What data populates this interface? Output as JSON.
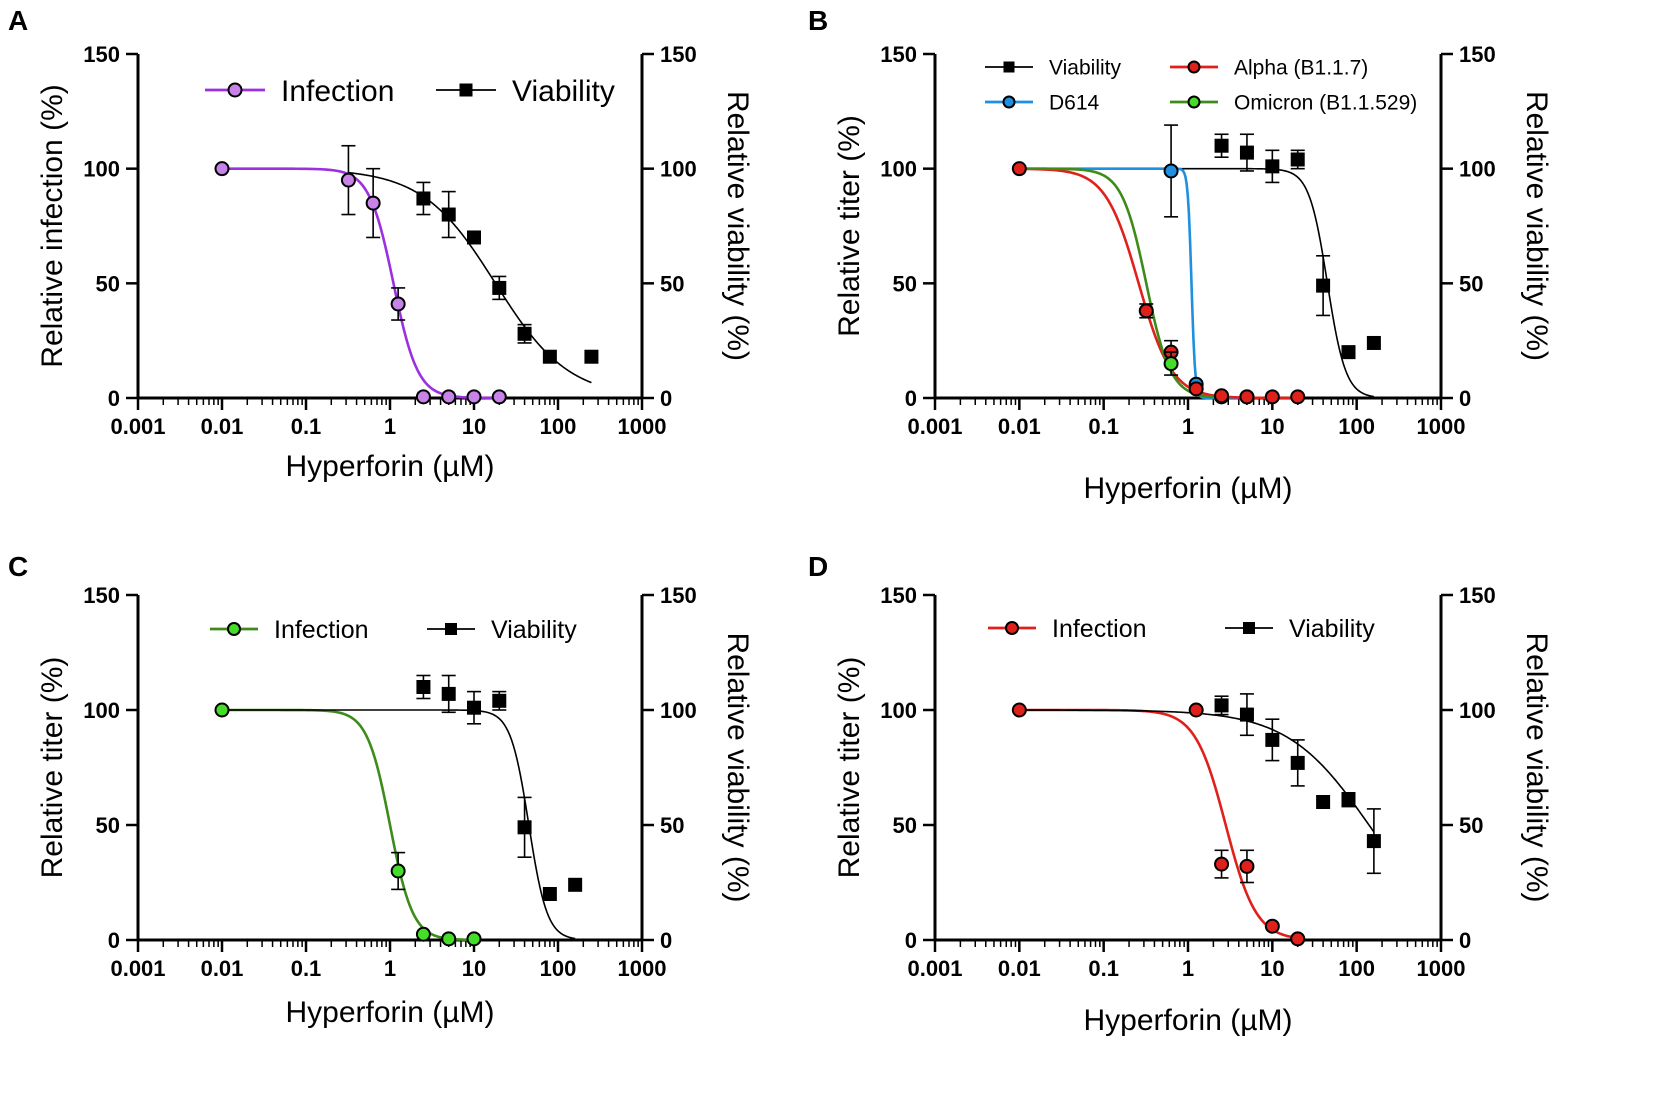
{
  "figure": {
    "colors": {
      "infection_purple": "#9b30e0",
      "infection_purple_fill": "#c783e8",
      "green_line": "#3d8c1a",
      "green_fill": "#45dc2a",
      "red": "#e0201a",
      "blue": "#1f8fe0",
      "black": "#000000"
    }
  },
  "chart_data": [
    {
      "panel": "A",
      "type": "scatter",
      "xlabel": "Hyperforin (µM)",
      "ylabel": "Relative infection (%)",
      "y2label": "Relative viability (%)",
      "xscale": "log",
      "xlim": [
        0.001,
        1000
      ],
      "ylim": [
        0,
        150
      ],
      "x_ticks": [
        "0.001",
        "0.01",
        "0.1",
        "1",
        "10",
        "100",
        "1000"
      ],
      "y_ticks": [
        "0",
        "50",
        "100",
        "150"
      ],
      "legend_size": "large",
      "series": [
        {
          "name": "Infection",
          "marker": "circle",
          "color": "#9b30e0",
          "fill": "#c783e8",
          "x": [
            0.01,
            0.32,
            0.63,
            1.25,
            2.5,
            5,
            10,
            20
          ],
          "y": [
            100,
            95,
            85,
            41,
            0.5,
            0.5,
            0.5,
            0.5
          ],
          "err": [
            0,
            15,
            15,
            7,
            0,
            0,
            0,
            0
          ],
          "fit": {
            "ic50": 1.1,
            "hill": 3.0,
            "xmin": 0.01,
            "xmax": 20
          }
        },
        {
          "name": "Viability",
          "marker": "square",
          "color": "#000000",
          "fill": "#000000",
          "x": [
            2.5,
            5,
            10,
            20,
            40,
            80,
            250
          ],
          "y": [
            87,
            80,
            70,
            48,
            28,
            18,
            18
          ],
          "err": [
            7,
            10,
            0,
            5,
            4,
            0,
            0
          ],
          "fit": {
            "ic50": 18,
            "hill": 1.0,
            "xmin": 0.32,
            "xmax": 250
          }
        }
      ]
    },
    {
      "panel": "B",
      "type": "scatter",
      "xlabel": "Hyperforin (µM)",
      "ylabel": "Relative titer (%)",
      "y2label": "Relative viability (%)",
      "xscale": "log",
      "xlim": [
        0.001,
        1000
      ],
      "ylim": [
        0,
        150
      ],
      "x_ticks": [
        "0.001",
        "0.01",
        "0.1",
        "1",
        "10",
        "100",
        "1000"
      ],
      "y_ticks": [
        "0",
        "50",
        "100",
        "150"
      ],
      "legend_size": "small",
      "series": [
        {
          "name": "Viability",
          "marker": "square",
          "color": "#000000",
          "fill": "#000000",
          "x": [
            2.5,
            5,
            10,
            20,
            40,
            80,
            160
          ],
          "y": [
            110,
            107,
            101,
            104,
            49,
            20,
            24
          ],
          "err": [
            5,
            8,
            7,
            4,
            13,
            0,
            0
          ],
          "fit": {
            "ic50": 45,
            "hill": 4.0,
            "xmin": 0.63,
            "xmax": 160
          }
        },
        {
          "name": "D614",
          "marker": "circle",
          "color": "#1f8fe0",
          "fill": "#1f8fe0",
          "x": [
            0.63,
            1.25,
            2.5,
            5
          ],
          "y": [
            99,
            6,
            0.5,
            0.5
          ],
          "err": [
            20,
            0,
            0,
            0
          ],
          "fit": {
            "ic50": 1.1,
            "hill": 20,
            "xmin": 0.01,
            "xmax": 5
          }
        },
        {
          "name": "Alpha (B1.1.7)",
          "marker": "circle",
          "color": "#e0201a",
          "fill": "#e0201a",
          "x": [
            0.01,
            0.32,
            0.63,
            1.25,
            2.5,
            5,
            10,
            20
          ],
          "y": [
            100,
            38,
            20,
            4,
            1,
            0.5,
            0.5,
            0.5
          ],
          "err": [
            0,
            3,
            5,
            0,
            0,
            0,
            0,
            0
          ],
          "fit": {
            "ic50": 0.26,
            "hill": 2.2,
            "xmin": 0.01,
            "xmax": 20
          }
        },
        {
          "name": "Omicron (B1.1.529)",
          "marker": "circle",
          "color": "#3d8c1a",
          "fill": "#45dc2a",
          "x": [
            0.63
          ],
          "y": [
            15
          ],
          "err": [
            5
          ],
          "fit": {
            "ic50": 0.32,
            "hill": 3.0,
            "xmin": 0.01,
            "xmax": 2
          }
        }
      ]
    },
    {
      "panel": "C",
      "type": "scatter",
      "xlabel": "Hyperforin (µM)",
      "ylabel": "Relative titer (%)",
      "y2label": "Relative viability (%)",
      "xscale": "log",
      "xlim": [
        0.001,
        1000
      ],
      "ylim": [
        0,
        150
      ],
      "x_ticks": [
        "0.001",
        "0.01",
        "0.1",
        "1",
        "10",
        "100",
        "1000"
      ],
      "y_ticks": [
        "0",
        "50",
        "100",
        "150"
      ],
      "legend_size": "medium",
      "series": [
        {
          "name": "Infection",
          "marker": "circle",
          "color": "#3d8c1a",
          "fill": "#45dc2a",
          "x": [
            0.01,
            1.25,
            2.5,
            5,
            10
          ],
          "y": [
            100,
            30,
            2.5,
            0.5,
            0.5
          ],
          "err": [
            0,
            8,
            0,
            0,
            0
          ],
          "fit": {
            "ic50": 1.0,
            "hill": 3.2,
            "xmin": 0.01,
            "xmax": 10
          }
        },
        {
          "name": "Viability",
          "marker": "square",
          "color": "#000000",
          "fill": "#000000",
          "x": [
            2.5,
            5,
            10,
            20,
            40,
            80,
            160
          ],
          "y": [
            110,
            107,
            101,
            104,
            49,
            20,
            24
          ],
          "err": [
            5,
            8,
            7,
            4,
            13,
            0,
            0
          ],
          "fit": {
            "ic50": 45,
            "hill": 4.0,
            "xmin": 0.01,
            "xmax": 160
          }
        }
      ]
    },
    {
      "panel": "D",
      "type": "scatter",
      "xlabel": "Hyperforin (µM)",
      "ylabel": "Relative titer (%)",
      "y2label": "Relative viability (%)",
      "xscale": "log",
      "xlim": [
        0.001,
        1000
      ],
      "ylim": [
        0,
        150
      ],
      "x_ticks": [
        "0.001",
        "0.01",
        "0.1",
        "1",
        "10",
        "100",
        "1000"
      ],
      "y_ticks": [
        "0",
        "50",
        "100",
        "150"
      ],
      "legend_size": "medium",
      "series": [
        {
          "name": "Infection",
          "marker": "circle",
          "color": "#e0201a",
          "fill": "#e0201a",
          "x": [
            0.01,
            1.25,
            2.5,
            5,
            10,
            20
          ],
          "y": [
            100,
            100,
            33,
            32,
            6,
            0.5
          ],
          "err": [
            0,
            0,
            6,
            7,
            0,
            0
          ],
          "fit": {
            "ic50": 2.8,
            "hill": 2.4,
            "xmin": 0.01,
            "xmax": 20
          }
        },
        {
          "name": "Viability",
          "marker": "square",
          "color": "#000000",
          "fill": "#000000",
          "x": [
            2.5,
            5,
            10,
            20,
            40,
            80,
            160
          ],
          "y": [
            102,
            98,
            87,
            77,
            60,
            61,
            43
          ],
          "err": [
            4,
            9,
            9,
            10,
            0,
            3,
            14
          ],
          "fit": {
            "ic50": 140,
            "hill": 0.9,
            "xmin": 0.01,
            "xmax": 160
          }
        }
      ]
    }
  ]
}
